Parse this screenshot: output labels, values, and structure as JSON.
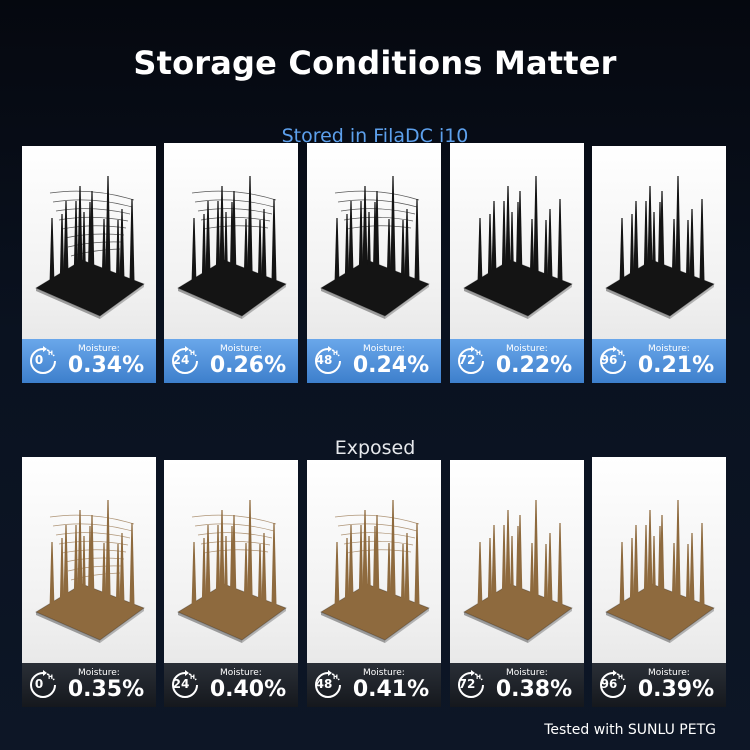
{
  "title": "Storage Conditions Matter",
  "stored": {
    "label": "Stored in FilaDC i10",
    "panels": [
      {
        "hours": "0",
        "unit": "H",
        "moisture_label": "Moisture:",
        "moisture": "0.34%"
      },
      {
        "hours": "24",
        "unit": "H",
        "moisture_label": "Moisture:",
        "moisture": "0.26%"
      },
      {
        "hours": "48",
        "unit": "H",
        "moisture_label": "Moisture:",
        "moisture": "0.24%"
      },
      {
        "hours": "72",
        "unit": "H",
        "moisture_label": "Moisture:",
        "moisture": "0.22%"
      },
      {
        "hours": "96",
        "unit": "H",
        "moisture_label": "Moisture:",
        "moisture": "0.21%"
      }
    ]
  },
  "exposed": {
    "label": "Exposed",
    "panels": [
      {
        "hours": "0",
        "unit": "H",
        "moisture_label": "Moisture:",
        "moisture": "0.35%"
      },
      {
        "hours": "24",
        "unit": "H",
        "moisture_label": "Moisture:",
        "moisture": "0.40%"
      },
      {
        "hours": "48",
        "unit": "H",
        "moisture_label": "Moisture:",
        "moisture": "0.41%"
      },
      {
        "hours": "72",
        "unit": "H",
        "moisture_label": "Moisture:",
        "moisture": "0.38%"
      },
      {
        "hours": "96",
        "unit": "H",
        "moisture_label": "Moisture:",
        "moisture": "0.39%"
      }
    ]
  },
  "footer": "Tested with SUNLU PETG",
  "colors": {
    "stored_accent": "#5da0ec",
    "stored_bar": "#4a8bd6",
    "stored_print": "#141414",
    "exposed_print": "#8e6a3e",
    "exposed_bar": "#1d2127"
  },
  "icons": {
    "clock": "clock-hours-icon"
  }
}
